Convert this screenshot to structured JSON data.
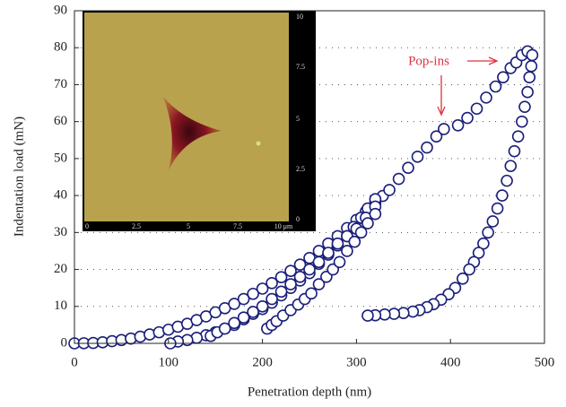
{
  "chart_data": {
    "type": "scatter",
    "xlabel": "Penetration depth (nm)",
    "ylabel": "Indentation load (mN)",
    "annotation": "Pop-ins",
    "annotation_color": "#e0323c",
    "color": "#1a1f7a",
    "grid": true,
    "xlim": [
      0,
      500
    ],
    "xticks": [
      0,
      100,
      200,
      300,
      400,
      500
    ],
    "ylim": [
      0,
      90
    ],
    "yticks": [
      0,
      10,
      20,
      30,
      40,
      50,
      60,
      70,
      80,
      90
    ],
    "x": [
      0,
      10,
      20,
      30,
      40,
      50,
      60,
      70,
      80,
      90,
      100,
      110,
      120,
      130,
      140,
      150,
      160,
      170,
      180,
      190,
      200,
      210,
      220,
      230,
      240,
      250,
      260,
      270,
      280,
      290,
      300,
      310,
      320,
      328,
      335,
      345,
      355,
      365,
      375,
      385,
      393,
      408,
      418,
      428,
      438,
      448,
      456,
      464,
      470,
      476,
      482,
      487,
      486,
      484,
      482,
      479,
      476,
      472,
      468,
      464,
      460,
      455,
      450,
      445,
      440,
      435,
      430,
      425,
      420,
      413,
      405,
      398,
      390,
      382,
      375,
      367,
      360,
      350,
      340,
      330,
      320,
      312,
      320,
      312,
      305,
      297,
      290,
      280,
      270,
      260,
      250,
      240,
      230,
      220,
      210,
      200,
      190,
      180,
      170,
      160,
      150,
      140,
      130,
      120,
      110,
      102,
      145,
      152,
      160,
      170,
      180,
      190,
      200,
      210,
      220,
      230,
      240,
      250,
      260,
      270,
      280,
      290,
      300,
      310,
      320,
      205,
      210,
      215,
      222,
      230,
      238,
      245,
      252,
      260,
      268,
      275,
      282,
      290,
      298,
      305,
      312,
      320
    ],
    "values": [
      0,
      0.03,
      0.1,
      0.3,
      0.6,
      0.9,
      1.3,
      1.8,
      2.4,
      3,
      3.7,
      4.5,
      5.3,
      6.3,
      7.3,
      8.4,
      9.5,
      10.7,
      12,
      13.4,
      14.8,
      16.3,
      17.9,
      19.6,
      21.3,
      23.1,
      25,
      27,
      29,
      31.2,
      33.4,
      35.7,
      38,
      39.9,
      41.5,
      44.5,
      47.5,
      50.5,
      53,
      56,
      58,
      59,
      61,
      63.5,
      66.5,
      69.5,
      72,
      74.5,
      76,
      78,
      79,
      78,
      75,
      72,
      68,
      64,
      60,
      56,
      52,
      48,
      44,
      40,
      36.5,
      33,
      30,
      27,
      24.5,
      22,
      20,
      17.5,
      15,
      13.3,
      11.8,
      10.6,
      9.8,
      9,
      8.6,
      8.2,
      8,
      7.8,
      7.6,
      7.5,
      39,
      36.5,
      34,
      31.5,
      29,
      26.5,
      24,
      21.5,
      19,
      17,
      15,
      13,
      11,
      9.3,
      8,
      6.5,
      5,
      4,
      3,
      2.2,
      1.5,
      0.9,
      0.5,
      0,
      2,
      3,
      4,
      5.5,
      7,
      8.5,
      10,
      12,
      14,
      16,
      18,
      20,
      22,
      24.5,
      27,
      29,
      31,
      34,
      37,
      4,
      5,
      6,
      7.5,
      9,
      10.5,
      12,
      13.5,
      16,
      18,
      20,
      22,
      25,
      27.5,
      30,
      32.5,
      35
    ]
  },
  "inset": {
    "x_labels": [
      "0",
      "2.5",
      "5",
      "7.5",
      "10 μm"
    ],
    "y_labels": [
      "10",
      "7.5",
      "5",
      "2.5",
      "0"
    ]
  }
}
